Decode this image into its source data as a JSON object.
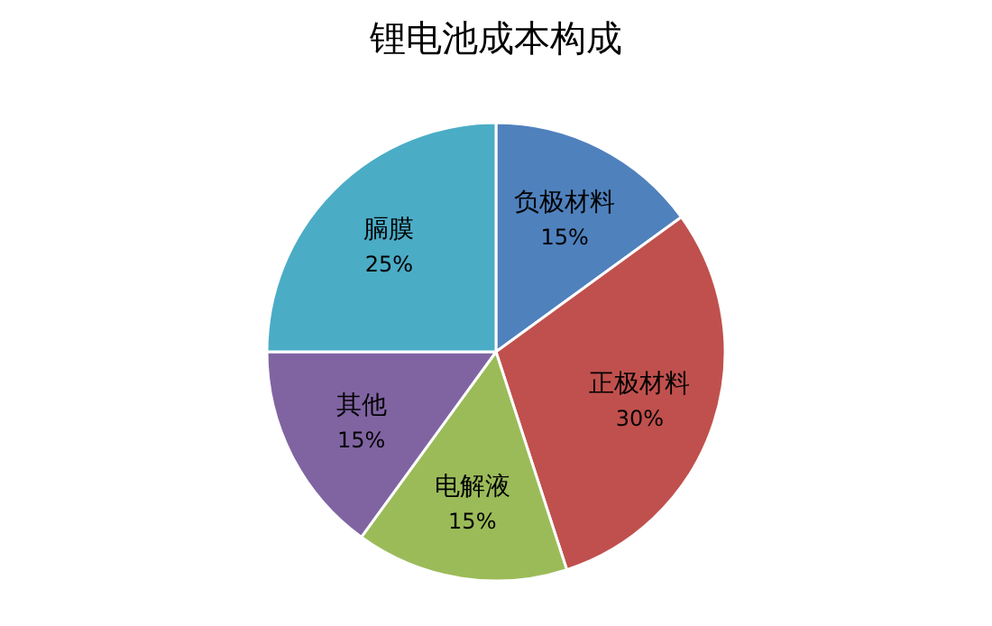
{
  "chart_data": {
    "type": "pie",
    "title": "锂电池成本构成",
    "categories": [
      "负极材料",
      "正极材料",
      "电解液",
      "其他",
      "膈膜"
    ],
    "values": [
      15,
      30,
      15,
      15,
      25
    ],
    "value_labels": [
      "15%",
      "30%",
      "15%",
      "15%",
      "25%"
    ],
    "colors": [
      "#4f81bd",
      "#c0504d",
      "#9bbb59",
      "#8064a2",
      "#4bacc6"
    ]
  }
}
